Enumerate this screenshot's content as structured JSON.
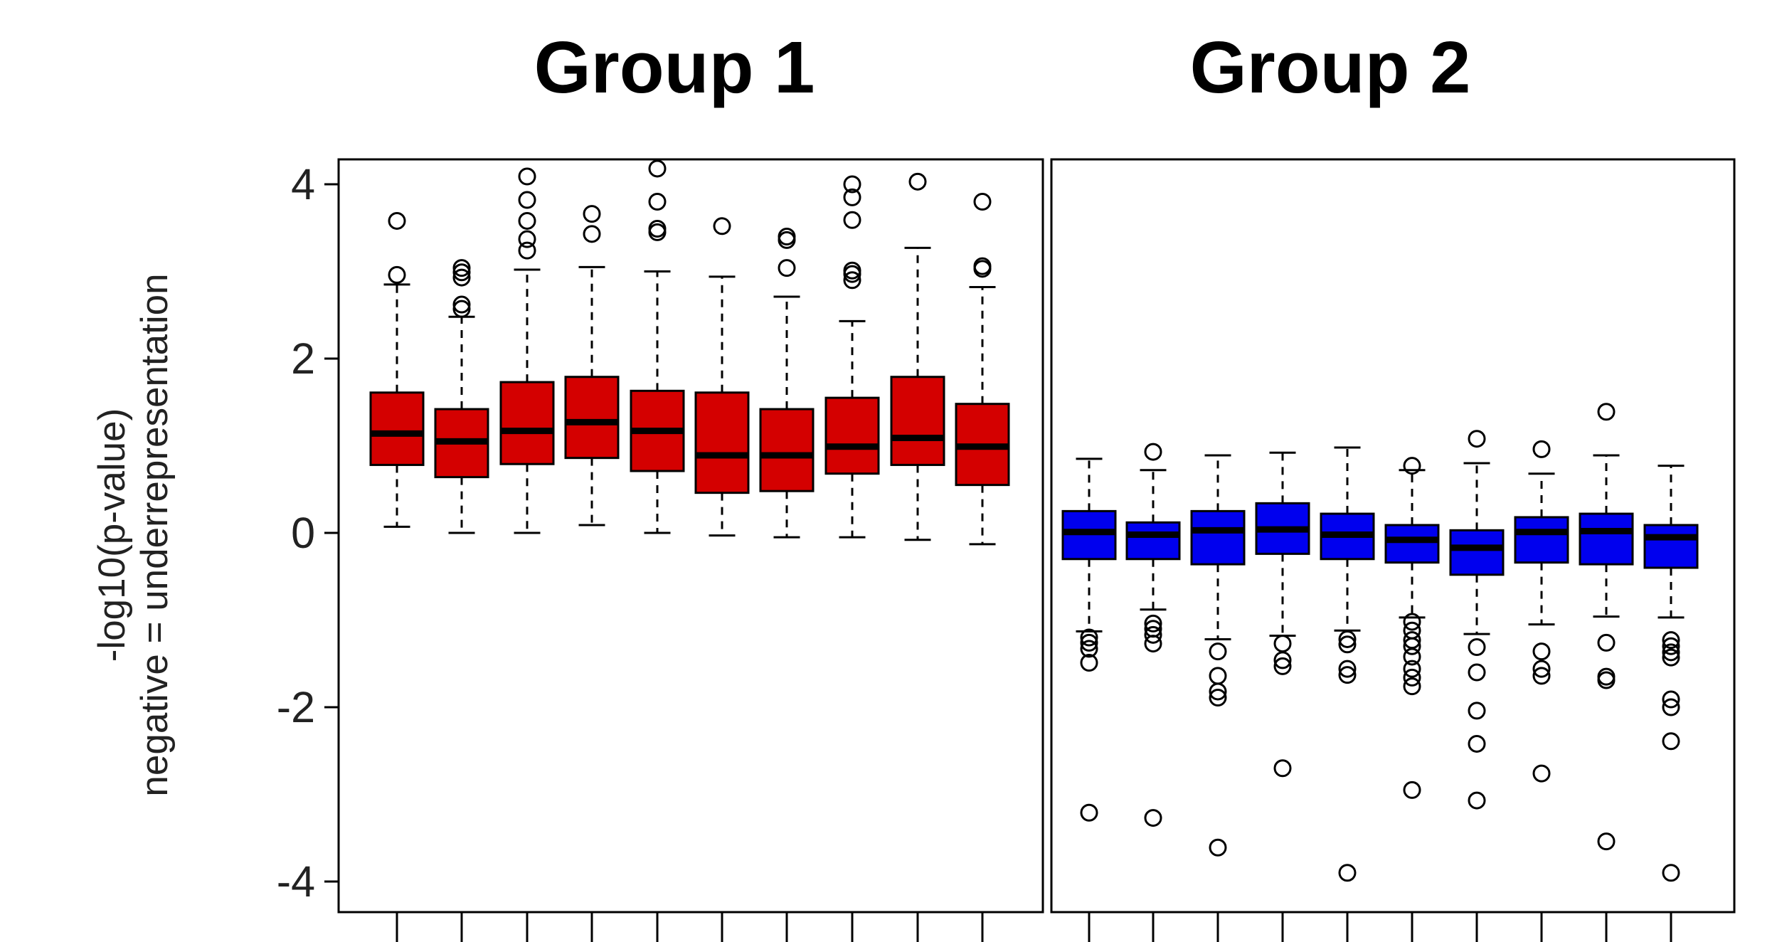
{
  "chart_data": [
    {
      "type": "boxplot",
      "title": "Group 1",
      "ylabel": "-log10(p-value)\nnegative = underrepresentation",
      "ylim": [
        -4.3,
        4.3
      ],
      "yticks": [
        -4,
        -2,
        0,
        2,
        4
      ],
      "color": "#d40000",
      "boxes": [
        {
          "whisker_low": 0.07,
          "q1": 0.78,
          "median": 1.14,
          "q3": 1.61,
          "whisker_high": 2.85,
          "outliers": [
            2.96,
            3.58
          ]
        },
        {
          "whisker_low": 0.0,
          "q1": 0.64,
          "median": 1.05,
          "q3": 1.42,
          "whisker_high": 2.48,
          "outliers": [
            2.57,
            2.62,
            2.93,
            2.99,
            3.04
          ]
        },
        {
          "whisker_low": 0.0,
          "q1": 0.79,
          "median": 1.17,
          "q3": 1.73,
          "whisker_high": 3.02,
          "outliers": [
            3.24,
            3.37,
            3.58,
            3.82,
            4.09
          ]
        },
        {
          "whisker_low": 0.09,
          "q1": 0.86,
          "median": 1.27,
          "q3": 1.79,
          "whisker_high": 3.05,
          "outliers": [
            3.43,
            3.66
          ]
        },
        {
          "whisker_low": 0.0,
          "q1": 0.71,
          "median": 1.17,
          "q3": 1.63,
          "whisker_high": 3.0,
          "outliers": [
            3.45,
            3.49,
            3.8,
            4.18
          ]
        },
        {
          "whisker_low": -0.03,
          "q1": 0.46,
          "median": 0.89,
          "q3": 1.61,
          "whisker_high": 2.94,
          "outliers": [
            3.52
          ]
        },
        {
          "whisker_low": -0.05,
          "q1": 0.48,
          "median": 0.89,
          "q3": 1.42,
          "whisker_high": 2.71,
          "outliers": [
            3.04,
            3.36,
            3.4
          ]
        },
        {
          "whisker_low": -0.05,
          "q1": 0.68,
          "median": 0.99,
          "q3": 1.55,
          "whisker_high": 2.43,
          "outliers": [
            2.9,
            2.97,
            3.01,
            3.59,
            3.85,
            4.0
          ]
        },
        {
          "whisker_low": -0.08,
          "q1": 0.78,
          "median": 1.09,
          "q3": 1.79,
          "whisker_high": 3.27,
          "outliers": [
            4.03
          ]
        },
        {
          "whisker_low": -0.13,
          "q1": 0.55,
          "median": 0.99,
          "q3": 1.48,
          "whisker_high": 2.82,
          "outliers": [
            3.03,
            3.06,
            3.8
          ]
        }
      ]
    },
    {
      "type": "boxplot",
      "title": "Group 2",
      "ylim": [
        -4.3,
        4.3
      ],
      "color": "#0000ee",
      "boxes": [
        {
          "whisker_low": -1.13,
          "q1": -0.3,
          "median": 0.01,
          "q3": 0.25,
          "whisker_high": 0.85,
          "outliers": [
            -1.2,
            -1.26,
            -1.33,
            -1.49,
            -3.21
          ]
        },
        {
          "whisker_low": -0.88,
          "q1": -0.3,
          "median": -0.02,
          "q3": 0.12,
          "whisker_high": 0.72,
          "outliers": [
            -1.04,
            -1.1,
            -1.17,
            -1.27,
            -3.27,
            0.93
          ]
        },
        {
          "whisker_low": -1.22,
          "q1": -0.36,
          "median": 0.03,
          "q3": 0.25,
          "whisker_high": 0.89,
          "outliers": [
            -1.36,
            -1.64,
            -1.82,
            -1.89,
            -3.61
          ]
        },
        {
          "whisker_low": -1.18,
          "q1": -0.24,
          "median": 0.04,
          "q3": 0.34,
          "whisker_high": 0.92,
          "outliers": [
            -1.27,
            -1.46,
            -1.53,
            -2.7
          ]
        },
        {
          "whisker_low": -1.12,
          "q1": -0.3,
          "median": -0.02,
          "q3": 0.22,
          "whisker_high": 0.98,
          "outliers": [
            -1.22,
            -1.28,
            -1.56,
            -1.63,
            -3.9
          ]
        },
        {
          "whisker_low": -0.97,
          "q1": -0.34,
          "median": -0.08,
          "q3": 0.09,
          "whisker_high": 0.72,
          "outliers": [
            -1.02,
            -1.12,
            -1.23,
            -1.3,
            -1.42,
            -1.56,
            -1.66,
            -1.76,
            -2.95,
            0.77
          ]
        },
        {
          "whisker_low": -1.16,
          "q1": -0.48,
          "median": -0.17,
          "q3": 0.03,
          "whisker_high": 0.8,
          "outliers": [
            -1.31,
            -1.6,
            -2.04,
            -2.42,
            -3.07,
            1.08
          ]
        },
        {
          "whisker_low": -1.05,
          "q1": -0.34,
          "median": 0.01,
          "q3": 0.18,
          "whisker_high": 0.68,
          "outliers": [
            -1.36,
            -1.56,
            -1.64,
            -2.76,
            0.96
          ]
        },
        {
          "whisker_low": -0.96,
          "q1": -0.36,
          "median": 0.02,
          "q3": 0.22,
          "whisker_high": 0.89,
          "outliers": [
            -1.26,
            -1.65,
            -1.69,
            -3.54,
            1.39
          ]
        },
        {
          "whisker_low": -0.97,
          "q1": -0.4,
          "median": -0.05,
          "q3": 0.09,
          "whisker_high": 0.77,
          "outliers": [
            -1.23,
            -1.3,
            -1.37,
            -1.43,
            -1.91,
            -2.0,
            -2.39,
            -3.9
          ]
        }
      ]
    }
  ]
}
